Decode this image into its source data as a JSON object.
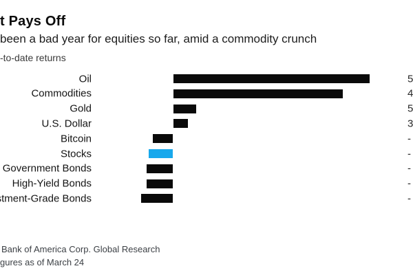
{
  "page": {
    "background": "#ffffff",
    "accent_color": "#18a8ec",
    "bar_color": "#0a0a0a"
  },
  "header": {
    "title": "t Pays Off",
    "subtitle": "been a bad year for equities so far, amid a commodity crunch",
    "axis_note": "-to-date returns"
  },
  "chart": {
    "rows": [
      {
        "label": "Oil",
        "value_label": "5",
        "highlighted": false
      },
      {
        "label": "Commodities",
        "value_label": "4",
        "highlighted": false
      },
      {
        "label": "Gold",
        "value_label": "5",
        "highlighted": false
      },
      {
        "label": "U.S. Dollar",
        "value_label": "3",
        "highlighted": false
      },
      {
        "label": "Bitcoin",
        "value_label": "-",
        "highlighted": false
      },
      {
        "label": "Stocks",
        "value_label": "-",
        "highlighted": true
      },
      {
        "label": "Government Bonds",
        "value_label": "-",
        "highlighted": false
      },
      {
        "label": "High-Yield Bonds",
        "value_label": "-",
        "highlighted": false
      },
      {
        "label": "Investment-Grade Bonds",
        "value_label": "-",
        "highlighted": false
      }
    ]
  },
  "footer": {
    "line1": "Bank of America Corp. Global Research",
    "line2": "gures as of March 24"
  },
  "chart_data": {
    "type": "bar",
    "orientation": "horizontal",
    "title": "t Pays Off",
    "subtitle": "been a bad year for equities so far, amid a commodity crunch",
    "xlabel": "-to-date returns",
    "categories": [
      "Oil",
      "Commodities",
      "Gold",
      "U.S. Dollar",
      "Bitcoin",
      "Stocks",
      "Government Bonds",
      "High-Yield Bonds",
      "Investment-Grade Bonds"
    ],
    "values": [
      51,
      44,
      5.9,
      3.8,
      -5.2,
      -6.3,
      -6.9,
      -6.9,
      -8.3
    ],
    "values_estimated_from_bar_lengths": true,
    "value_labels_visible": [
      "5",
      "4",
      "5",
      "3",
      "-",
      "-",
      "-",
      "-",
      "-"
    ],
    "highlighted_category": "Stocks",
    "highlight_color": "#18a8ec",
    "bar_color": "#0a0a0a",
    "xlim": [
      -10,
      62
    ],
    "grid": false,
    "legend": false
  }
}
